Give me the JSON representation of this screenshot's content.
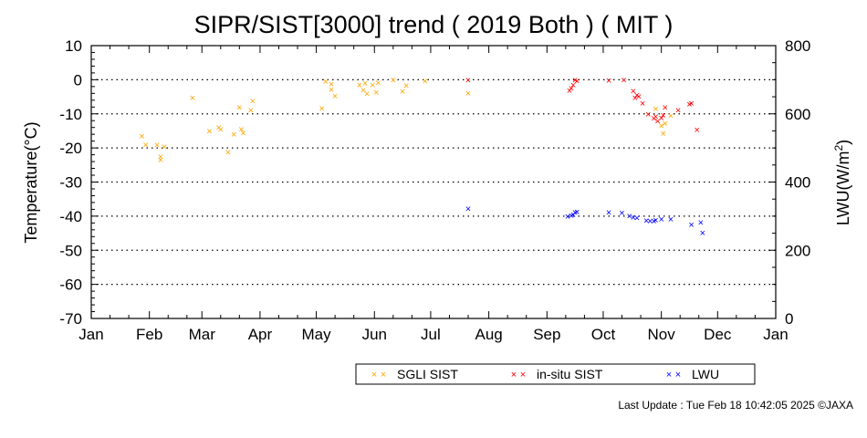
{
  "chart_data": {
    "type": "scatter",
    "title": "SIPR/SIST[3000] trend ( 2019 Both ) ( MIT )",
    "ylabel_left": "Temperature(°C)",
    "ylabel_right_prefix": "LWU(W/m",
    "ylabel_right_sup": "2",
    "ylabel_right_suffix": ")",
    "xlim": [
      0,
      365
    ],
    "ylim_left": [
      -70,
      10
    ],
    "ylim_right": [
      0,
      800
    ],
    "x_ticks": [
      {
        "label": "Jan",
        "day": 0
      },
      {
        "label": "Feb",
        "day": 31
      },
      {
        "label": "Mar",
        "day": 59
      },
      {
        "label": "Apr",
        "day": 90
      },
      {
        "label": "May",
        "day": 120
      },
      {
        "label": "Jun",
        "day": 151
      },
      {
        "label": "Jul",
        "day": 181
      },
      {
        "label": "Aug",
        "day": 212
      },
      {
        "label": "Sep",
        "day": 243
      },
      {
        "label": "Oct",
        "day": 273
      },
      {
        "label": "Nov",
        "day": 304
      },
      {
        "label": "Dec",
        "day": 334
      },
      {
        "label": "Jan",
        "day": 365
      }
    ],
    "y_ticks_left": [
      "10",
      "0",
      "-10",
      "-20",
      "-30",
      "-40",
      "-50",
      "-60",
      "-70"
    ],
    "y_ticks_right": [
      "800",
      "600",
      "400",
      "200",
      "0"
    ],
    "grid": "dotted horizontal",
    "legend_position": "bottom-right",
    "marker": "×",
    "series": [
      {
        "name": "SGLI SIST",
        "color": "#ffa500",
        "axis": "left",
        "points": [
          [
            27,
            -16.5
          ],
          [
            29,
            -19.0
          ],
          [
            35,
            -19.0
          ],
          [
            37,
            -22.5
          ],
          [
            37,
            -23.5
          ],
          [
            39,
            -19.5
          ],
          [
            54,
            -5.3
          ],
          [
            63,
            -15.0
          ],
          [
            68,
            -14.0
          ],
          [
            69,
            -14.5
          ],
          [
            73,
            -21.2
          ],
          [
            76,
            -16.0
          ],
          [
            79,
            -8.0
          ],
          [
            80,
            -14.5
          ],
          [
            81,
            -15.5
          ],
          [
            85,
            -8.8
          ],
          [
            86,
            -6.2
          ],
          [
            123,
            -8.3
          ],
          [
            125,
            -0.5
          ],
          [
            128,
            -1.2
          ],
          [
            128,
            -2.8
          ],
          [
            130,
            -4.7
          ],
          [
            143,
            -1.5
          ],
          [
            145,
            -3.0
          ],
          [
            146,
            -1.0
          ],
          [
            147,
            -4.0
          ],
          [
            150,
            -1.5
          ],
          [
            152,
            -3.6
          ],
          [
            153,
            -0.8
          ],
          [
            161,
            -0.1
          ],
          [
            166,
            -3.4
          ],
          [
            168,
            -1.7
          ],
          [
            178,
            -0.3
          ],
          [
            201,
            -3.9
          ],
          [
            301,
            -8.5
          ],
          [
            304,
            -13.4
          ],
          [
            305,
            -15.7
          ],
          [
            306,
            -12.7
          ],
          [
            309,
            -10.5
          ]
        ]
      },
      {
        "name": "in-situ SIST",
        "color": "#ff0000",
        "axis": "left",
        "points": [
          [
            201,
            0.0
          ],
          [
            255,
            -3.1
          ],
          [
            256,
            -2.4
          ],
          [
            257,
            -1.5
          ],
          [
            258,
            -0.1
          ],
          [
            259,
            -0.3
          ],
          [
            276,
            -0.2
          ],
          [
            284,
            -0.1
          ],
          [
            289,
            -3.3
          ],
          [
            290,
            -5.3
          ],
          [
            291,
            -4.4
          ],
          [
            292,
            -4.8
          ],
          [
            294,
            -6.9
          ],
          [
            297,
            -10.0
          ],
          [
            300,
            -11.3
          ],
          [
            301,
            -10.8
          ],
          [
            302,
            -12.1
          ],
          [
            304,
            -11.1
          ],
          [
            305,
            -10.3
          ],
          [
            306,
            -8.0
          ],
          [
            313,
            -8.8
          ],
          [
            319,
            -7.1
          ],
          [
            320,
            -6.9
          ],
          [
            323,
            -14.6
          ]
        ]
      },
      {
        "name": "LWU",
        "color": "#0000ff",
        "axis": "right",
        "points": [
          [
            201,
            322
          ],
          [
            254,
            300
          ],
          [
            256,
            302
          ],
          [
            257,
            305
          ],
          [
            258,
            312
          ],
          [
            259,
            313
          ],
          [
            276,
            312
          ],
          [
            283,
            310
          ],
          [
            287,
            301
          ],
          [
            289,
            297
          ],
          [
            291,
            295
          ],
          [
            296,
            288
          ],
          [
            298,
            286
          ],
          [
            300,
            286
          ],
          [
            301,
            289
          ],
          [
            304,
            292
          ],
          [
            309,
            292
          ],
          [
            320,
            275
          ],
          [
            325,
            282
          ],
          [
            326,
            251
          ]
        ]
      }
    ]
  },
  "footer": "Last Update : Tue Feb 18 10:42:05 2025  ©JAXA"
}
